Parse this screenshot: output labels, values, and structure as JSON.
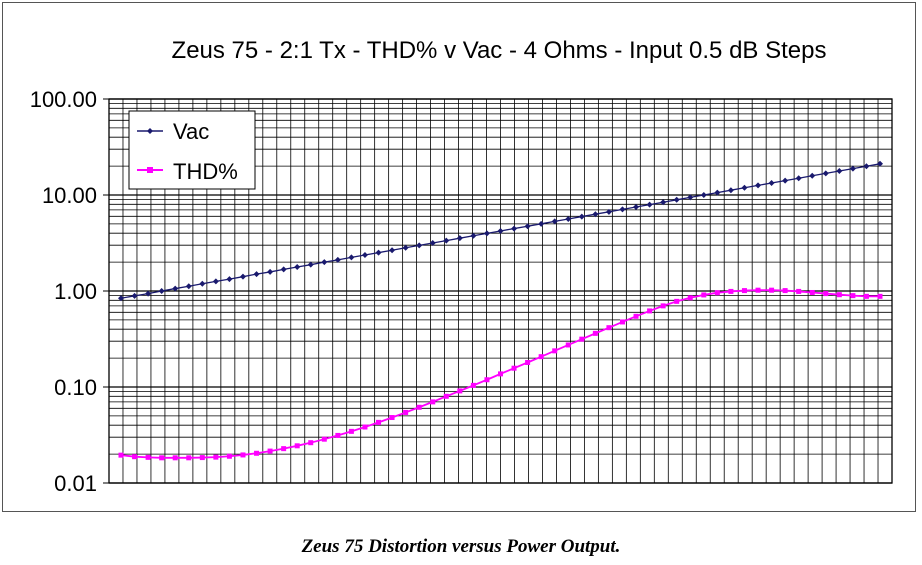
{
  "caption": "Zeus 75 Distortion versus Power Output.",
  "chart_data": {
    "type": "line",
    "title": "Zeus 75 - 2:1 Tx - THD% v Vac - 4 Ohms - Input 0.5 dB Steps",
    "xlabel": "",
    "ylabel": "",
    "yscale": "log",
    "ylim": [
      0.01,
      100
    ],
    "ytick_labels": [
      "100.00",
      "10.00",
      "1.00",
      "0.10",
      "0.01"
    ],
    "legend_position": "top-left",
    "grid": true,
    "series": [
      {
        "name": "Vac",
        "color": "#1a1a6e",
        "marker": "diamond",
        "values": [
          0.84,
          0.89,
          0.94,
          1.0,
          1.06,
          1.12,
          1.19,
          1.26,
          1.33,
          1.41,
          1.5,
          1.58,
          1.68,
          1.78,
          1.88,
          2.0,
          2.11,
          2.24,
          2.37,
          2.51,
          2.66,
          2.82,
          2.99,
          3.16,
          3.35,
          3.55,
          3.76,
          3.98,
          4.22,
          4.47,
          4.73,
          5.01,
          5.31,
          5.62,
          5.96,
          6.31,
          6.68,
          7.08,
          7.5,
          7.94,
          8.41,
          8.91,
          9.44,
          10.0,
          10.59,
          11.22,
          11.89,
          12.59,
          13.34,
          14.13,
          14.96,
          15.85,
          16.79,
          17.78,
          18.84,
          19.95,
          21.13
        ]
      },
      {
        "name": "THD%",
        "color": "#ff00ff",
        "marker": "square",
        "values": [
          0.0195,
          0.0188,
          0.0185,
          0.0183,
          0.0183,
          0.0183,
          0.0184,
          0.0186,
          0.019,
          0.0196,
          0.0204,
          0.0215,
          0.0228,
          0.0244,
          0.0263,
          0.0286,
          0.0313,
          0.0345,
          0.0383,
          0.0428,
          0.0481,
          0.0543,
          0.0615,
          0.07,
          0.08,
          0.091,
          0.104,
          0.119,
          0.137,
          0.157,
          0.18,
          0.207,
          0.238,
          0.274,
          0.315,
          0.362,
          0.415,
          0.476,
          0.545,
          0.62,
          0.7,
          0.78,
          0.85,
          0.91,
          0.96,
          0.99,
          1.01,
          1.02,
          1.02,
          1.01,
          0.99,
          0.965,
          0.94,
          0.915,
          0.895,
          0.88,
          0.88
        ]
      }
    ]
  }
}
